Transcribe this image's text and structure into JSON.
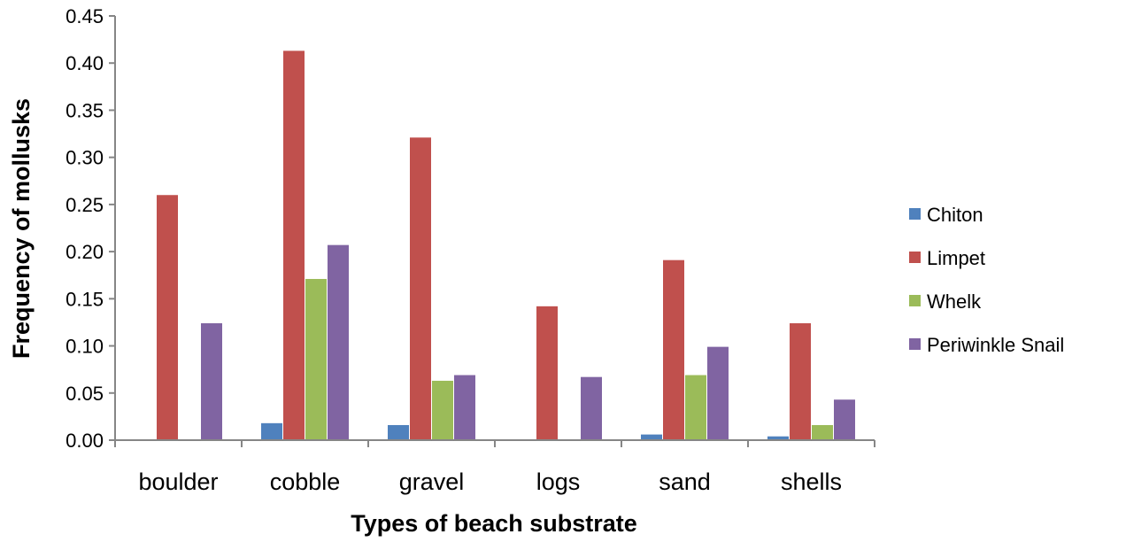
{
  "chart_data": {
    "type": "bar",
    "title": "",
    "xlabel": "Types of beach substrate",
    "ylabel": "Frequency of mollusks",
    "ylim": [
      0,
      0.45
    ],
    "yticks": [
      "0.00",
      "0.05",
      "0.10",
      "0.15",
      "0.20",
      "0.25",
      "0.30",
      "0.35",
      "0.40",
      "0.45"
    ],
    "categories": [
      "boulder",
      "cobble",
      "gravel",
      "logs",
      "sand",
      "shells"
    ],
    "series": [
      {
        "name": "Chiton",
        "color": "#4F81BD",
        "values": [
          0,
          0.018,
          0.016,
          0,
          0.006,
          0.004
        ]
      },
      {
        "name": "Limpet",
        "color": "#C0504D",
        "values": [
          0.26,
          0.413,
          0.321,
          0.142,
          0.191,
          0.124
        ]
      },
      {
        "name": "Whelk",
        "color": "#9BBB59",
        "values": [
          0,
          0.171,
          0.063,
          0,
          0.069,
          0.016
        ]
      },
      {
        "name": "Periwinkle Snail",
        "color": "#8064A2",
        "values": [
          0.124,
          0.207,
          0.069,
          0.067,
          0.099,
          0.043
        ]
      }
    ],
    "grid": false,
    "legend_position": "right"
  }
}
